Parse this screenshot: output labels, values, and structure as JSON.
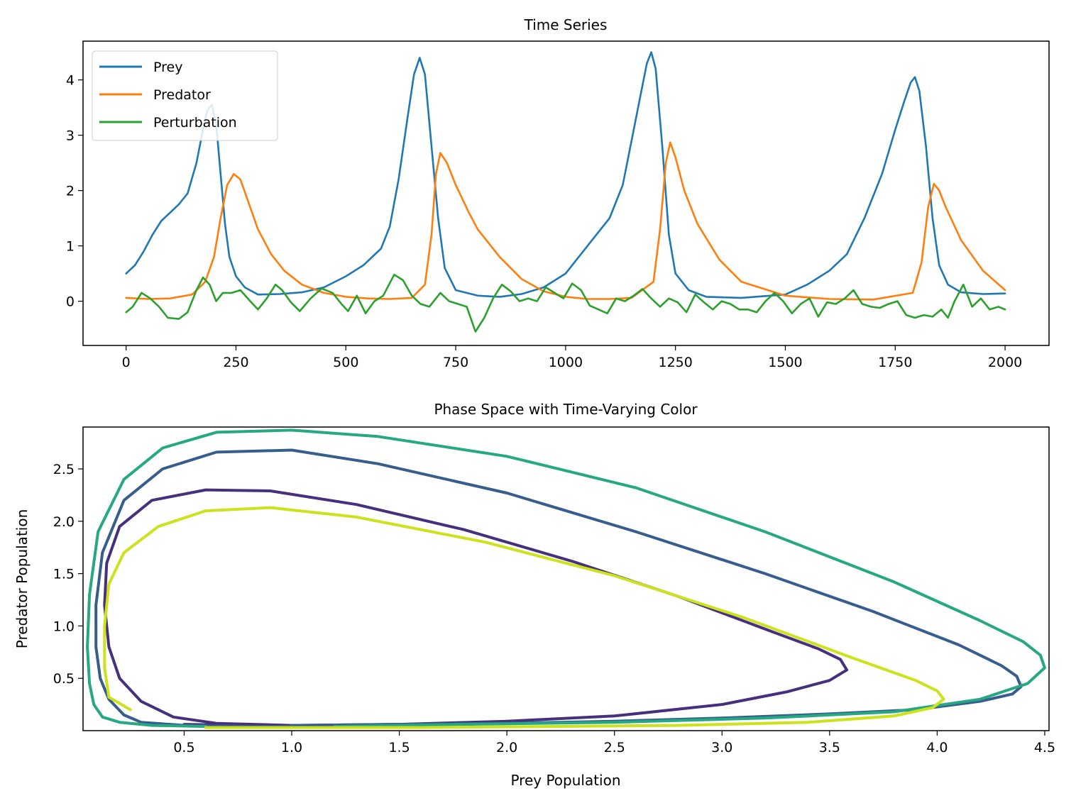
{
  "chart_data": [
    {
      "type": "line",
      "title": "Time Series",
      "xlabel": "",
      "ylabel": "",
      "xlim": [
        -98,
        2100
      ],
      "ylim": [
        -0.8,
        4.7
      ],
      "xticks": [
        0,
        250,
        500,
        750,
        1000,
        1250,
        1500,
        1750,
        2000
      ],
      "yticks": [
        0,
        1,
        2,
        3,
        4
      ],
      "legend_position": "top-left",
      "series": [
        {
          "name": "Prey",
          "color": "#1f77b4",
          "x": [
            0,
            20,
            40,
            60,
            80,
            100,
            120,
            140,
            160,
            175,
            185,
            195,
            205,
            215,
            225,
            235,
            250,
            270,
            300,
            350,
            400,
            450,
            500,
            540,
            580,
            600,
            620,
            640,
            655,
            668,
            680,
            695,
            710,
            725,
            750,
            800,
            850,
            900,
            950,
            1000,
            1050,
            1100,
            1130,
            1150,
            1170,
            1185,
            1195,
            1205,
            1220,
            1235,
            1250,
            1280,
            1320,
            1400,
            1500,
            1550,
            1600,
            1640,
            1680,
            1720,
            1750,
            1770,
            1785,
            1795,
            1805,
            1820,
            1835,
            1850,
            1870,
            1900,
            1950,
            2000
          ],
          "y": [
            0.5,
            0.65,
            0.9,
            1.2,
            1.45,
            1.6,
            1.75,
            1.95,
            2.5,
            3.1,
            3.45,
            3.55,
            3.2,
            2.3,
            1.4,
            0.8,
            0.45,
            0.25,
            0.12,
            0.13,
            0.16,
            0.25,
            0.45,
            0.65,
            0.95,
            1.35,
            2.2,
            3.3,
            4.1,
            4.4,
            4.1,
            2.8,
            1.5,
            0.6,
            0.2,
            0.1,
            0.08,
            0.13,
            0.25,
            0.5,
            1.0,
            1.5,
            2.1,
            2.9,
            3.7,
            4.3,
            4.5,
            4.2,
            2.8,
            1.2,
            0.5,
            0.2,
            0.08,
            0.06,
            0.12,
            0.3,
            0.55,
            0.85,
            1.5,
            2.3,
            3.1,
            3.6,
            3.95,
            4.05,
            3.8,
            2.8,
            1.5,
            0.65,
            0.3,
            0.16,
            0.13,
            0.14
          ]
        },
        {
          "name": "Predator",
          "color": "#ff7f0e",
          "x": [
            0,
            50,
            100,
            150,
            180,
            200,
            215,
            230,
            245,
            260,
            280,
            300,
            330,
            360,
            400,
            450,
            500,
            550,
            600,
            650,
            680,
            695,
            705,
            715,
            730,
            750,
            780,
            800,
            850,
            900,
            950,
            1000,
            1050,
            1100,
            1150,
            1200,
            1215,
            1228,
            1238,
            1250,
            1270,
            1300,
            1350,
            1400,
            1500,
            1600,
            1700,
            1790,
            1810,
            1825,
            1838,
            1850,
            1865,
            1900,
            1950,
            2000
          ],
          "y": [
            0.06,
            0.04,
            0.05,
            0.12,
            0.35,
            0.8,
            1.5,
            2.1,
            2.3,
            2.2,
            1.75,
            1.3,
            0.85,
            0.55,
            0.3,
            0.15,
            0.08,
            0.05,
            0.04,
            0.06,
            0.3,
            1.2,
            2.3,
            2.68,
            2.5,
            2.1,
            1.6,
            1.3,
            0.8,
            0.4,
            0.18,
            0.08,
            0.04,
            0.04,
            0.06,
            0.35,
            1.3,
            2.5,
            2.87,
            2.6,
            2.0,
            1.4,
            0.75,
            0.35,
            0.1,
            0.04,
            0.03,
            0.15,
            0.7,
            1.7,
            2.12,
            2.0,
            1.7,
            1.1,
            0.55,
            0.2
          ]
        },
        {
          "name": "Perturbation",
          "color": "#2ca02c",
          "x": [
            0,
            15,
            35,
            55,
            75,
            95,
            120,
            140,
            160,
            175,
            190,
            205,
            220,
            240,
            260,
            280,
            300,
            320,
            340,
            355,
            375,
            395,
            420,
            445,
            470,
            490,
            505,
            525,
            545,
            565,
            585,
            610,
            630,
            650,
            670,
            690,
            715,
            735,
            755,
            775,
            795,
            815,
            835,
            855,
            875,
            895,
            915,
            935,
            955,
            975,
            995,
            1015,
            1035,
            1055,
            1075,
            1095,
            1115,
            1135,
            1155,
            1175,
            1195,
            1215,
            1235,
            1255,
            1275,
            1295,
            1315,
            1335,
            1355,
            1375,
            1395,
            1415,
            1435,
            1455,
            1475,
            1495,
            1515,
            1535,
            1555,
            1575,
            1595,
            1615,
            1635,
            1655,
            1675,
            1695,
            1715,
            1735,
            1755,
            1775,
            1795,
            1815,
            1835,
            1855,
            1870,
            1885,
            1905,
            1925,
            1945,
            1965,
            1985,
            2000
          ],
          "y": [
            -0.2,
            -0.1,
            0.15,
            0.05,
            -0.1,
            -0.3,
            -0.32,
            -0.2,
            0.2,
            0.43,
            0.3,
            0.0,
            0.15,
            0.15,
            0.2,
            0.02,
            -0.15,
            0.05,
            0.3,
            0.2,
            -0.02,
            -0.18,
            0.05,
            0.23,
            0.15,
            -0.05,
            -0.18,
            0.1,
            -0.22,
            0.0,
            0.1,
            0.48,
            0.38,
            0.1,
            -0.05,
            -0.1,
            0.15,
            0.0,
            -0.05,
            -0.1,
            -0.55,
            -0.3,
            0.05,
            0.3,
            0.18,
            0.0,
            0.05,
            0.0,
            0.25,
            0.15,
            0.05,
            0.32,
            0.2,
            -0.08,
            -0.15,
            -0.22,
            0.05,
            0.0,
            0.1,
            0.22,
            0.05,
            -0.1,
            0.05,
            -0.02,
            -0.2,
            0.12,
            -0.02,
            -0.15,
            0.0,
            -0.05,
            -0.15,
            -0.15,
            -0.2,
            0.0,
            0.15,
            0.0,
            -0.22,
            -0.05,
            0.05,
            -0.28,
            -0.02,
            -0.05,
            0.05,
            0.2,
            -0.05,
            -0.1,
            -0.12,
            -0.05,
            0.0,
            -0.25,
            -0.3,
            -0.25,
            -0.28,
            -0.15,
            -0.3,
            0.0,
            0.3,
            -0.1,
            0.05,
            -0.15,
            -0.1,
            -0.15
          ]
        }
      ]
    },
    {
      "type": "line",
      "title": "Phase Space with Time-Varying Color",
      "xlabel": "Prey Population",
      "ylabel": "Predator Population",
      "xlim": [
        0.03,
        4.52
      ],
      "ylim": [
        0.0,
        2.9
      ],
      "xticks": [
        "0.5",
        "1.0",
        "1.5",
        "2.0",
        "2.5",
        "3.0",
        "3.5",
        "4.0",
        "4.5"
      ],
      "yticks": [
        "0.5",
        "1.0",
        "1.5",
        "2.0",
        "2.5"
      ],
      "colormap": [
        "#440154",
        "#3b528b",
        "#21918c",
        "#5ec962",
        "#fde725"
      ],
      "series": [
        {
          "color": "#46307e",
          "x": [
            0.5,
            0.8,
            1.0,
            1.5,
            2.0,
            2.5,
            3.0,
            3.3,
            3.5,
            3.58,
            3.55,
            3.45,
            3.2,
            2.8,
            2.3,
            1.8,
            1.3,
            0.9,
            0.6,
            0.35,
            0.2,
            0.14,
            0.13,
            0.15,
            0.2,
            0.3,
            0.45,
            0.65,
            1.0
          ],
          "y": [
            0.06,
            0.05,
            0.05,
            0.06,
            0.09,
            0.14,
            0.25,
            0.37,
            0.48,
            0.58,
            0.68,
            0.78,
            0.97,
            1.28,
            1.62,
            1.92,
            2.16,
            2.29,
            2.3,
            2.2,
            1.95,
            1.6,
            1.2,
            0.8,
            0.5,
            0.28,
            0.13,
            0.07,
            0.05
          ]
        },
        {
          "color": "#365d8d",
          "x": [
            1.0,
            1.5,
            2.0,
            2.5,
            3.0,
            3.5,
            3.9,
            4.2,
            4.35,
            4.39,
            4.37,
            4.3,
            4.1,
            3.7,
            3.2,
            2.6,
            2.0,
            1.4,
            1.0,
            0.65,
            0.4,
            0.22,
            0.12,
            0.09,
            0.09,
            0.11,
            0.15,
            0.22,
            0.3,
            0.5,
            0.8,
            1.2
          ],
          "y": [
            0.05,
            0.06,
            0.07,
            0.09,
            0.12,
            0.16,
            0.2,
            0.28,
            0.35,
            0.42,
            0.52,
            0.62,
            0.82,
            1.14,
            1.5,
            1.9,
            2.27,
            2.55,
            2.68,
            2.66,
            2.5,
            2.2,
            1.7,
            1.2,
            0.8,
            0.5,
            0.3,
            0.15,
            0.08,
            0.05,
            0.04,
            0.04
          ]
        },
        {
          "color": "#26a882",
          "x": [
            1.2,
            1.8,
            2.5,
            3.2,
            3.8,
            4.2,
            4.42,
            4.5,
            4.48,
            4.4,
            4.2,
            3.8,
            3.2,
            2.6,
            2.0,
            1.4,
            1.0,
            0.65,
            0.4,
            0.22,
            0.1,
            0.06,
            0.05,
            0.06,
            0.08,
            0.12,
            0.2,
            0.35,
            0.6
          ],
          "y": [
            0.04,
            0.06,
            0.08,
            0.12,
            0.18,
            0.3,
            0.45,
            0.6,
            0.72,
            0.85,
            1.05,
            1.42,
            1.9,
            2.32,
            2.62,
            2.81,
            2.87,
            2.85,
            2.7,
            2.4,
            1.9,
            1.3,
            0.8,
            0.45,
            0.25,
            0.13,
            0.08,
            0.05,
            0.04
          ]
        },
        {
          "color": "#cde11d",
          "x": [
            0.6,
            1.0,
            1.6,
            2.2,
            2.8,
            3.4,
            3.8,
            3.98,
            4.03,
            4.0,
            3.9,
            3.6,
            3.1,
            2.5,
            1.9,
            1.3,
            0.9,
            0.6,
            0.38,
            0.22,
            0.15,
            0.13,
            0.13,
            0.15,
            0.25
          ],
          "y": [
            0.03,
            0.03,
            0.03,
            0.04,
            0.05,
            0.08,
            0.14,
            0.22,
            0.3,
            0.38,
            0.48,
            0.7,
            1.08,
            1.48,
            1.8,
            2.04,
            2.13,
            2.1,
            1.95,
            1.7,
            1.4,
            1.0,
            0.6,
            0.32,
            0.2
          ]
        }
      ]
    }
  ]
}
